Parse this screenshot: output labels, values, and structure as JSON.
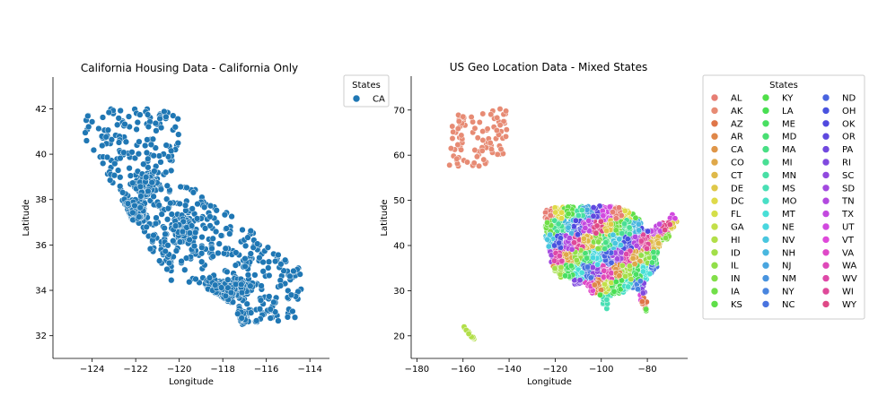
{
  "chart_data": [
    {
      "type": "scatter",
      "title": "California Housing Data - California Only",
      "xlabel": "Longitude",
      "ylabel": "Latitude",
      "xlim": [
        -125.8,
        -113.1
      ],
      "ylim": [
        31.0,
        43.4
      ],
      "xticks": [
        -124,
        -122,
        -120,
        -118,
        -116,
        -114
      ],
      "yticks": [
        32,
        34,
        36,
        38,
        40,
        42
      ],
      "grid": false,
      "legend": {
        "title": "States",
        "placement": "outside-top-right",
        "entries": [
          "CA"
        ]
      },
      "colors": {
        "CA": "#1f77b4"
      },
      "series": [
        {
          "name": "CA",
          "region": "california",
          "lon_range": [
            -124.4,
            -114.3
          ],
          "lat_range": [
            32.5,
            42.0
          ]
        }
      ]
    },
    {
      "type": "scatter",
      "title": "US Geo Location Data - Mixed States",
      "xlabel": "Longitude",
      "ylabel": "Latitude",
      "xlim": [
        -182.5,
        -62.5
      ],
      "ylim": [
        15.0,
        77.5
      ],
      "xticks": [
        -180,
        -160,
        -140,
        -120,
        -100,
        -80
      ],
      "yticks": [
        20,
        30,
        40,
        50,
        60,
        70
      ],
      "grid": false,
      "legend": {
        "title": "States",
        "placement": "outside-right",
        "columns": 3,
        "entries": [
          "AL",
          "AK",
          "AZ",
          "AR",
          "CA",
          "CO",
          "CT",
          "DE",
          "DC",
          "FL",
          "GA",
          "HI",
          "ID",
          "IL",
          "IN",
          "IA",
          "KS",
          "KY",
          "LA",
          "ME",
          "MD",
          "MA",
          "MI",
          "MN",
          "MS",
          "MO",
          "MT",
          "NE",
          "NV",
          "NH",
          "NJ",
          "NM",
          "NY",
          "NC",
          "ND",
          "OH",
          "OK",
          "OR",
          "PA",
          "RI",
          "SC",
          "SD",
          "TN",
          "TX",
          "UT",
          "VT",
          "VA",
          "WA",
          "WV",
          "WI",
          "WY"
        ]
      },
      "regions": {
        "AK": {
          "lon_range": [
            -166,
            -141
          ],
          "lat_range": [
            57.5,
            70.5
          ]
        },
        "HI": {
          "lon_range": [
            -160,
            -155
          ],
          "lat_range": [
            19,
            22.3
          ]
        },
        "contiguous": {
          "lon_range": [
            -124.5,
            -67
          ],
          "lat_range": [
            25.5,
            49
          ]
        }
      }
    }
  ]
}
